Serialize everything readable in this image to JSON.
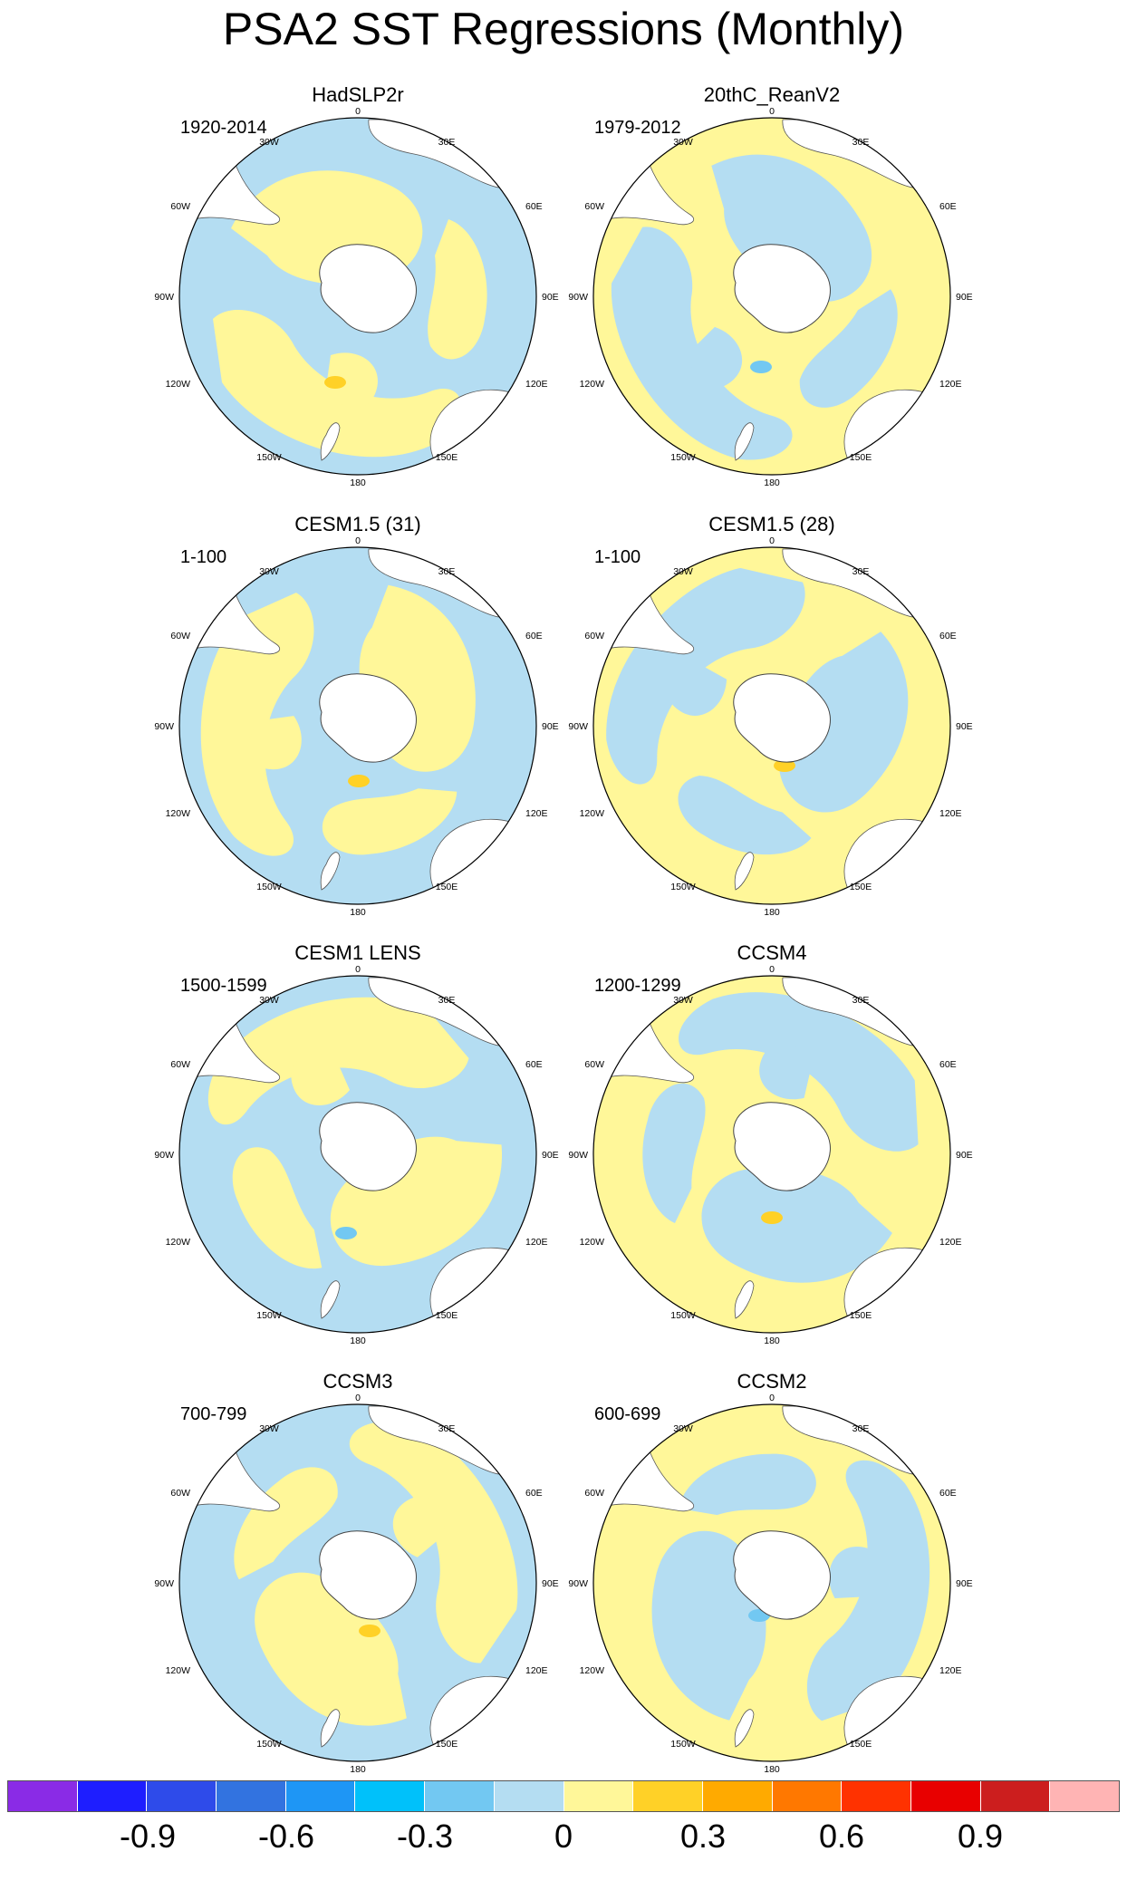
{
  "title": "PSA2 SST Regressions (Monthly)",
  "colors": {
    "ocean_positive": "#FFF799",
    "ocean_negative": "#B4DDF2",
    "land": "#FFFFFF",
    "positive_moderate": "#FFD127",
    "negative_moderate": "#72C8F2"
  },
  "map_labels": {
    "top": "0",
    "bottom": "180",
    "left": "90W",
    "right": "90E",
    "upper_left_30": "30W",
    "upper_left_60": "60W",
    "upper_right_30": "30E",
    "upper_right_60": "60E",
    "lower_left_120": "120W",
    "lower_left_150": "150W",
    "lower_right_120": "120E",
    "lower_right_150": "150E"
  },
  "panels": [
    {
      "name": "HadSLP2r",
      "period": "1920-2014"
    },
    {
      "name": "20thC_ReanV2",
      "period": "1979-2012"
    },
    {
      "name": "CESM1.5 (31)",
      "period": "1-100"
    },
    {
      "name": "CESM1.5 (28)",
      "period": "1-100"
    },
    {
      "name": "CESM1 LENS",
      "period": "1500-1599"
    },
    {
      "name": "CCSM4",
      "period": "1200-1299"
    },
    {
      "name": "CCSM3",
      "period": "700-799"
    },
    {
      "name": "CCSM2",
      "period": "600-699"
    }
  ],
  "colorbar": {
    "colors": [
      "#8A2BE6",
      "#1E1EFF",
      "#2E4BEA",
      "#3273E0",
      "#1E96F5",
      "#00C1FA",
      "#72C8F2",
      "#B4DDF2",
      "#FFF799",
      "#FFD127",
      "#FFAA00",
      "#FF7800",
      "#FF3200",
      "#E80000",
      "#CC1E1E",
      "#FFB4B4"
    ],
    "labels": [
      "-0.9",
      "-0.6",
      "-0.3",
      "0",
      "0.3",
      "0.6",
      "0.9"
    ]
  }
}
